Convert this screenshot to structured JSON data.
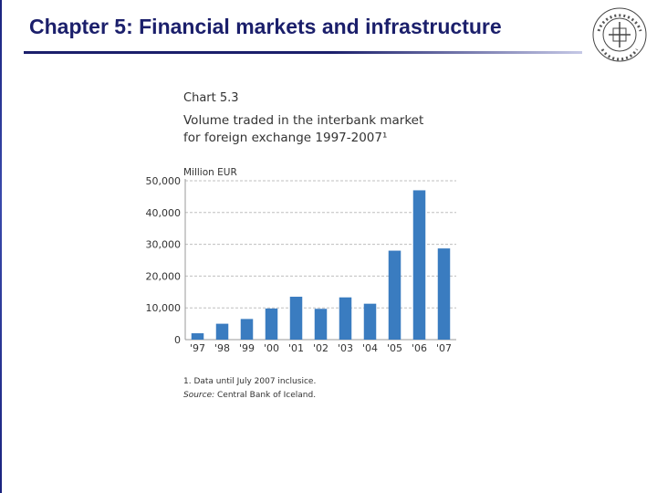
{
  "slide": {
    "title": "Chapter 5: Financial markets and infrastructure",
    "seal_icon": "university-seal-icon"
  },
  "chart_header": {
    "label": "Chart 5.3",
    "title_line1": "Volume traded in the interbank market",
    "title_line2": "for foreign exchange 1997-2007¹",
    "unit": "Million EUR"
  },
  "notes": {
    "footnote": "1. Data until July 2007 inclusice.",
    "source_label": "Source:",
    "source_text": " Central Bank of Iceland."
  },
  "colors": {
    "title": "#1b1f6b",
    "bar": "#3a7cc0",
    "grid": "#bfbfbf"
  },
  "chart_data": {
    "type": "bar",
    "title": "Volume traded in the interbank market for foreign exchange 1997-2007¹",
    "ylabel": "Million EUR",
    "xlabel": "",
    "categories": [
      "'97",
      "'98",
      "'99",
      "'00",
      "'01",
      "'02",
      "'03",
      "'04",
      "'05",
      "'06",
      "'07"
    ],
    "values": [
      2000,
      5000,
      6500,
      9800,
      13500,
      9700,
      13300,
      11300,
      28000,
      47000,
      28700
    ],
    "ylim": [
      0,
      50000
    ],
    "yticks": [
      0,
      10000,
      20000,
      30000,
      40000,
      50000
    ],
    "ytick_labels": [
      "0",
      "10,000",
      "20,000",
      "30,000",
      "40,000",
      "50,000"
    ],
    "grid": true
  }
}
